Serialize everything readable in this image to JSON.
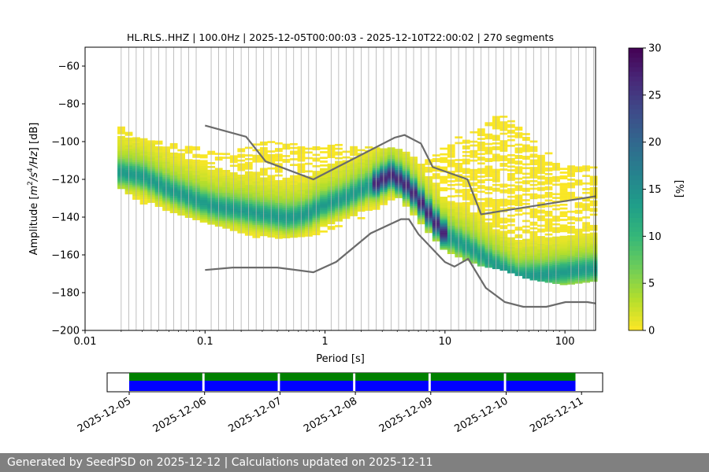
{
  "chart_data": {
    "type": "heatmap",
    "title": "HL.RLS..HHZ | 100.0Hz | 2025-12-05T00:00:03 - 2025-12-10T22:00:02 | 270 segments",
    "xlabel": "Period [s]",
    "ylabel_parts": [
      "Amplitude [",
      "m",
      "2",
      "/",
      "s",
      "4",
      "/",
      "Hz",
      "] [dB]"
    ],
    "xscale": "log",
    "xlim": [
      0.01,
      180
    ],
    "ylim": [
      -200,
      -50
    ],
    "x_ticks": [
      0.01,
      0.1,
      1,
      10,
      100
    ],
    "x_tick_labels": [
      "0.01",
      "0.1",
      "1",
      "10",
      "100"
    ],
    "y_ticks": [
      -200,
      -180,
      -160,
      -140,
      -120,
      -100,
      -80,
      -60
    ],
    "y_tick_labels": [
      "−200",
      "−180",
      "−160",
      "−140",
      "−120",
      "−100",
      "−80",
      "−60"
    ],
    "grid": "vertical, at period bin centers",
    "colormap": "viridis_r",
    "colorbar": {
      "label": "[%]",
      "range": [
        0,
        30
      ],
      "ticks": [
        0,
        5,
        10,
        15,
        20,
        25,
        30
      ],
      "tick_labels": [
        "0",
        "5",
        "10",
        "15",
        "20",
        "25",
        "30"
      ]
    },
    "psd_mode": {
      "name": "mode",
      "points": [
        [
          0.02,
          -117
        ],
        [
          0.03,
          -119
        ],
        [
          0.05,
          -126
        ],
        [
          0.08,
          -131
        ],
        [
          0.12,
          -135
        ],
        [
          0.2,
          -137
        ],
        [
          0.3,
          -139
        ],
        [
          0.5,
          -141
        ],
        [
          0.7,
          -139
        ],
        [
          1,
          -134
        ],
        [
          1.5,
          -130
        ],
        [
          2,
          -126
        ],
        [
          2.8,
          -122
        ],
        [
          3.5,
          -118
        ],
        [
          4.5,
          -122
        ],
        [
          5.5,
          -128
        ],
        [
          6.5,
          -134
        ],
        [
          8,
          -142
        ],
        [
          10,
          -150
        ],
        [
          13,
          -154
        ],
        [
          17,
          -158
        ],
        [
          25,
          -165
        ],
        [
          40,
          -172
        ],
        [
          70,
          -171
        ],
        [
          120,
          -169
        ],
        [
          180,
          -168
        ]
      ]
    },
    "psd_spread": {
      "name": "spread",
      "points": [
        [
          0.02,
          [
            -125,
            -93
          ]
        ],
        [
          0.03,
          [
            -133,
            -99
          ]
        ],
        [
          0.05,
          [
            -137,
            -100
          ]
        ],
        [
          0.1,
          [
            -143,
            -104
          ]
        ],
        [
          0.15,
          [
            -146,
            -106
          ]
        ],
        [
          0.3,
          [
            -152,
            -100
          ]
        ],
        [
          0.5,
          [
            -151,
            -101
          ]
        ],
        [
          0.8,
          [
            -150,
            -103
          ]
        ],
        [
          1.2,
          [
            -146,
            -102
          ]
        ],
        [
          2,
          [
            -141,
            -103
          ]
        ],
        [
          3,
          [
            -134,
            -104
          ]
        ],
        [
          4,
          [
            -129,
            -104
          ]
        ],
        [
          5,
          [
            -136,
            -107
          ]
        ],
        [
          7,
          [
            -147,
            -111
          ]
        ],
        [
          10,
          [
            -158,
            -100
          ]
        ],
        [
          15,
          [
            -163,
            -97
          ]
        ],
        [
          20,
          [
            -166,
            -93
          ]
        ],
        [
          30,
          [
            -168,
            -85
          ]
        ],
        [
          50,
          [
            -173,
            -97
          ]
        ],
        [
          100,
          [
            -176,
            -112
          ]
        ],
        [
          180,
          [
            -174,
            -114
          ]
        ]
      ]
    },
    "noise_models": [
      {
        "name": "NHNM",
        "points": [
          [
            0.1,
            -91.5
          ],
          [
            0.22,
            -97.4
          ],
          [
            0.32,
            -110.5
          ],
          [
            0.8,
            -120
          ],
          [
            3.8,
            -97.9
          ],
          [
            4.6,
            -96.5
          ],
          [
            6.3,
            -101
          ],
          [
            7.9,
            -113.5
          ],
          [
            15.4,
            -120
          ],
          [
            20,
            -138.5
          ],
          [
            354.8,
            -126
          ]
        ]
      },
      {
        "name": "NLNM",
        "points": [
          [
            0.1,
            -168
          ],
          [
            0.17,
            -166.7
          ],
          [
            0.4,
            -166.7
          ],
          [
            0.8,
            -169.2
          ],
          [
            1.24,
            -163.7
          ],
          [
            2.4,
            -148.6
          ],
          [
            4.3,
            -141.1
          ],
          [
            5,
            -141.1
          ],
          [
            6,
            -149
          ],
          [
            10,
            -163.8
          ],
          [
            12,
            -166.2
          ],
          [
            15.6,
            -162.1
          ],
          [
            21.9,
            -177.5
          ],
          [
            31.6,
            -185
          ],
          [
            45,
            -187.5
          ],
          [
            70,
            -187.5
          ],
          [
            101,
            -185
          ],
          [
            154,
            -185
          ],
          [
            180,
            -185.7
          ]
        ]
      }
    ],
    "timeline": {
      "range": [
        "2025-12-05",
        "2025-12-11"
      ],
      "tick_labels": [
        "2025-12-05",
        "2025-12-06",
        "2025-12-07",
        "2025-12-08",
        "2025-12-09",
        "2025-12-10",
        "2025-12-11"
      ],
      "segments": [
        [
          0,
          0.97
        ],
        [
          1,
          1.97
        ],
        [
          2,
          2.97
        ],
        [
          3,
          3.97
        ],
        [
          4,
          4.97
        ],
        [
          5,
          5.92
        ]
      ],
      "bar_colors": {
        "upper": "#008000",
        "lower": "#0000ff"
      }
    }
  },
  "footer": {
    "text": "Generated by SeedPSD on 2025-12-12 | Calculations updated on 2025-12-11"
  }
}
